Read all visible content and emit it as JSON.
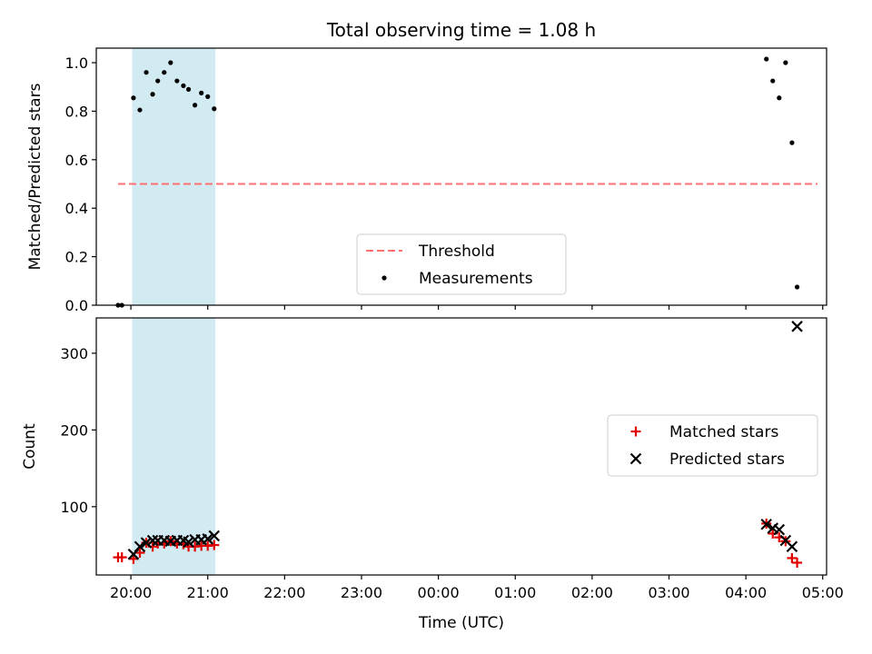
{
  "chart_data": {
    "title": "Total observing time = 1.08 h",
    "xlabel": "Time (UTC)",
    "xlim": [
      "19:33",
      "05:03"
    ],
    "x_ticks": [
      "20:00",
      "21:00",
      "22:00",
      "23:00",
      "00:00",
      "01:00",
      "02:00",
      "03:00",
      "04:00",
      "05:00"
    ],
    "highlight_span": {
      "start": "20:01",
      "end": "21:06",
      "color": "#add8e6"
    },
    "top": {
      "type": "scatter",
      "ylabel": "Matched/Predicted stars",
      "ylim": [
        0,
        1.06
      ],
      "y_ticks": [
        "0.0",
        "0.2",
        "0.4",
        "0.6",
        "0.8",
        "1.0"
      ],
      "threshold": {
        "name": "Threshold",
        "value": 0.5,
        "x": [
          "19:50",
          "04:56"
        ],
        "color": "#ff7070"
      },
      "series": [
        {
          "name": "Measurements",
          "marker": "dot",
          "color": "#000000",
          "points": [
            [
              "19:50",
              0.0
            ],
            [
              "19:53",
              0.0
            ],
            [
              "20:02",
              0.855
            ],
            [
              "20:07",
              0.805
            ],
            [
              "20:12",
              0.96
            ],
            [
              "20:17",
              0.87
            ],
            [
              "20:21",
              0.925
            ],
            [
              "20:26",
              0.96
            ],
            [
              "20:31",
              1.0
            ],
            [
              "20:36",
              0.925
            ],
            [
              "20:41",
              0.905
            ],
            [
              "20:45",
              0.89
            ],
            [
              "20:50",
              0.825
            ],
            [
              "20:55",
              0.875
            ],
            [
              "21:00",
              0.86
            ],
            [
              "21:05",
              0.81
            ],
            [
              "04:16",
              1.015
            ],
            [
              "04:21",
              0.925
            ],
            [
              "04:26",
              0.855
            ],
            [
              "04:31",
              1.0
            ],
            [
              "04:36",
              0.67
            ],
            [
              "04:40",
              0.075
            ]
          ]
        }
      ],
      "legend": "lower-center"
    },
    "bottom": {
      "type": "scatter",
      "ylabel": "Count",
      "ylim": [
        11,
        346
      ],
      "y_ticks": [
        "100",
        "200",
        "300"
      ],
      "series": [
        {
          "name": "Matched stars",
          "marker": "plus",
          "color": "#e00000",
          "points": [
            [
              "19:50",
              34
            ],
            [
              "19:53",
              34
            ],
            [
              "20:02",
              32
            ],
            [
              "20:07",
              40
            ],
            [
              "20:12",
              53
            ],
            [
              "20:17",
              48
            ],
            [
              "20:21",
              52
            ],
            [
              "20:26",
              52
            ],
            [
              "20:31",
              55
            ],
            [
              "20:36",
              52
            ],
            [
              "20:41",
              51
            ],
            [
              "20:45",
              48
            ],
            [
              "20:50",
              48
            ],
            [
              "20:55",
              49
            ],
            [
              "21:00",
              49
            ],
            [
              "21:05",
              50
            ],
            [
              "04:16",
              78
            ],
            [
              "04:21",
              65
            ],
            [
              "04:26",
              60
            ],
            [
              "04:31",
              55
            ],
            [
              "04:36",
              33
            ],
            [
              "04:40",
              27
            ]
          ]
        },
        {
          "name": "Predicted stars",
          "marker": "x",
          "color": "#000000",
          "points": [
            [
              "20:02",
              38
            ],
            [
              "20:07",
              48
            ],
            [
              "20:12",
              53
            ],
            [
              "20:17",
              56
            ],
            [
              "20:21",
              56
            ],
            [
              "20:26",
              56
            ],
            [
              "20:31",
              55
            ],
            [
              "20:36",
              56
            ],
            [
              "20:41",
              56
            ],
            [
              "20:45",
              54
            ],
            [
              "20:50",
              57
            ],
            [
              "20:55",
              57
            ],
            [
              "21:00",
              58
            ],
            [
              "21:05",
              62
            ],
            [
              "04:16",
              77
            ],
            [
              "04:21",
              72
            ],
            [
              "04:26",
              70
            ],
            [
              "04:31",
              56
            ],
            [
              "04:36",
              48
            ],
            [
              "04:40",
              335
            ]
          ]
        }
      ],
      "legend": "center-right"
    }
  }
}
